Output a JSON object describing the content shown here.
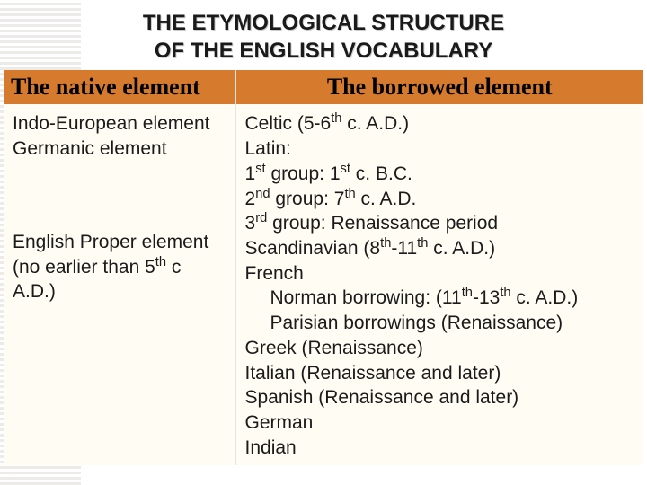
{
  "title_line1": "THE ETYMOLOGICAL STRUCTURE",
  "title_line2": "OF THE ENGLISH VOCABULARY",
  "header_left": "The native element",
  "header_right": "The borrowed element",
  "native": {
    "l1": "Indo-European element",
    "l2": "Germanic element",
    "l3a": "English Proper element",
    "l3b": "(no earlier than 5",
    "l3b_sup": "th",
    "l3b_tail": " c",
    "l3c": "A.D.)"
  },
  "borrowed": {
    "b1a": "Celtic (5-6",
    "b1a_sup": "th",
    "b1a_tail": " c. A.D.)",
    "b2": "Latin:",
    "b3a": "1",
    "b3a_sup": "st",
    "b3a_mid": " group: 1",
    "b3a_sup2": "st",
    "b3a_tail": " c. B.C.",
    "b4a": "2",
    "b4a_sup": "nd",
    "b4a_mid": " group: 7",
    "b4a_sup2": "th",
    "b4a_tail": " c. A.D.",
    "b5a": "3",
    "b5a_sup": "rd",
    "b5a_tail": " group: Renaissance period",
    "b6a": "Scandinavian (8",
    "b6a_sup": "th",
    "b6a_mid": "-11",
    "b6a_sup2": "th",
    "b6a_tail": " c. A.D.)",
    "b7": "French",
    "b8a": "Norman borrowing: (11",
    "b8a_sup": "th",
    "b8a_mid": "-13",
    "b8a_sup2": "th",
    "b8a_tail": " c. A.D.)",
    "b9": "Parisian borrowings (Renaissance)",
    "b10": "Greek (Renaissance)",
    "b11": "Italian (Renaissance and later)",
    "b12": "Spanish (Renaissance and later)",
    "b13": "German",
    "b14": "Indian"
  },
  "colors": {
    "header_bg": "#d67a2e",
    "body_bg": "#fffdf3",
    "text": "#1a1a1a",
    "stripe_light": "#ffffff",
    "stripe_dark": "#ecebe8"
  }
}
